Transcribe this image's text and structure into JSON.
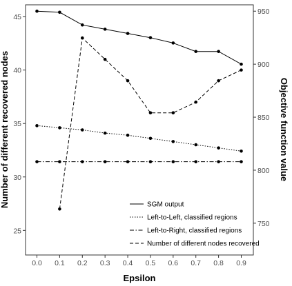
{
  "chart_data": {
    "type": "line",
    "xlabel": "Epsilon",
    "ylabel_left": "Number of different recovered nodes",
    "ylabel_right": "Objective function value",
    "x": [
      0.0,
      0.1,
      0.2,
      0.3,
      0.4,
      0.5,
      0.6,
      0.7,
      0.8,
      0.9
    ],
    "x_tick_labels": [
      "0.0",
      "0.1",
      "0.2",
      "0.3",
      "0.4",
      "0.5",
      "0.6",
      "0.7",
      "0.8",
      "0.9"
    ],
    "ylim_left": [
      22.7,
      46.1
    ],
    "ylim_right": [
      720,
      956
    ],
    "y_ticks_left": [
      25,
      30,
      35,
      40,
      45
    ],
    "y_ticks_right": [
      750,
      800,
      850,
      900,
      950
    ],
    "grid": false,
    "legend_position": "bottom-right",
    "series": [
      {
        "name": "SGM output",
        "axis": "right",
        "dash": "solid",
        "values": [
          950,
          949,
          937,
          933,
          929,
          925,
          920,
          912,
          912,
          900
        ]
      },
      {
        "name": "Left-to-Left, classified regions",
        "axis": "right",
        "dash": "dotted",
        "values": [
          842,
          840,
          838,
          835,
          833,
          830,
          827,
          824,
          821,
          818
        ]
      },
      {
        "name": "Left-to-Right, classified regions",
        "axis": "right",
        "dash": "dashdot",
        "values": [
          808,
          808,
          808,
          808,
          808,
          808,
          808,
          808,
          808,
          808
        ]
      },
      {
        "name": "Number of different nodes recovered",
        "axis": "left",
        "dash": "dashed",
        "x": [
          0.1,
          0.2,
          0.3,
          0.4,
          0.5,
          0.6,
          0.7,
          0.8,
          0.9
        ],
        "values": [
          27,
          43,
          41,
          39,
          36,
          36,
          37,
          39,
          40
        ]
      }
    ]
  }
}
